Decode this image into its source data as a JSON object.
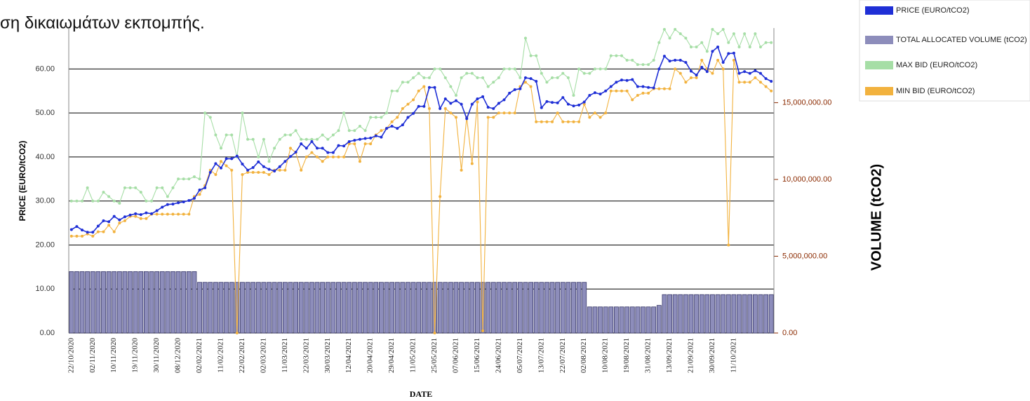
{
  "caption": "ση δικαιωμάτων εκπομπής.",
  "chart_data": {
    "type": "line",
    "xlabel": "DATE",
    "ylabel": "PRICE (EURO/tCO2)",
    "y2label": "VOLUME (tCO2)",
    "categories": [
      "22/10/2020",
      null,
      null,
      null,
      "02/11/2020",
      null,
      null,
      null,
      "10/11/2020",
      null,
      null,
      null,
      "19/11/2020",
      null,
      null,
      null,
      "30/11/2020",
      null,
      null,
      null,
      "08/12/2020",
      null,
      null,
      null,
      "02/02/2021",
      null,
      null,
      null,
      "11/02/2021",
      null,
      null,
      null,
      "22/02/2021",
      null,
      null,
      null,
      "02/03/2021",
      null,
      null,
      null,
      "11/03/2021",
      null,
      null,
      null,
      "22/03/2021",
      null,
      null,
      null,
      "30/03/2021",
      null,
      null,
      null,
      "12/04/2021",
      null,
      null,
      null,
      "20/04/2021",
      null,
      null,
      null,
      "29/04/2021",
      null,
      null,
      null,
      "11/05/2021",
      null,
      null,
      null,
      "25/05/2021",
      null,
      null,
      null,
      "07/06/2021",
      null,
      null,
      null,
      "15/06/2021",
      null,
      null,
      null,
      "24/06/2021",
      null,
      null,
      null,
      "05/07/2021",
      null,
      null,
      null,
      "13/07/2021",
      null,
      null,
      null,
      "22/07/2021",
      null,
      null,
      null,
      "02/08/2021",
      null,
      null,
      null,
      "10/08/2021",
      null,
      null,
      null,
      "19/08/2021",
      null,
      null,
      null,
      "31/08/2021",
      null,
      null,
      null,
      "13/09/2021",
      null,
      null,
      null,
      "21/09/2021",
      null,
      null,
      null,
      "30/09/2021",
      null,
      null,
      null,
      "11/10/2021",
      null,
      null,
      null,
      null,
      null,
      null,
      null
    ],
    "ylim": [
      0,
      69.3
    ],
    "yticks": [
      {
        "value": 0,
        "label": "0.00"
      },
      {
        "value": 10,
        "label": "10.00"
      },
      {
        "value": 20,
        "label": "20.00"
      },
      {
        "value": 30,
        "label": "30.00"
      },
      {
        "value": 40,
        "label": "40.00"
      },
      {
        "value": 50,
        "label": "50.00"
      },
      {
        "value": 60,
        "label": "60.00"
      }
    ],
    "y2lim": [
      0,
      19860000
    ],
    "y2ticks": [
      {
        "value": 0,
        "label": "0.00"
      },
      {
        "value": 5000000,
        "label": "5,000,000.00"
      },
      {
        "value": 10000000,
        "label": "10,000,000.00"
      },
      {
        "value": 15000000,
        "label": "15,000,000.00"
      }
    ],
    "grid": true,
    "legend": "top-right",
    "series": [
      {
        "name": "PRICE (EURO/tCO2)",
        "color": "#1f2fd6",
        "values": [
          23.5,
          24.2,
          23.4,
          22.9,
          22.9,
          24.3,
          25.5,
          25.3,
          26.5,
          25.7,
          26.4,
          26.8,
          27.1,
          26.9,
          27.3,
          27.1,
          27.8,
          28.6,
          29.2,
          29.3,
          29.6,
          29.8,
          30.1,
          30.6,
          32.5,
          33,
          36.5,
          38.5,
          37.5,
          39.6,
          39.6,
          40.2,
          38.4,
          37,
          37.6,
          38.9,
          37.8,
          37.2,
          36.8,
          37.8,
          39,
          40.1,
          41.1,
          43,
          42,
          43.5,
          42,
          42,
          41,
          41,
          42.6,
          42.5,
          43.5,
          43.8,
          44,
          44.2,
          44.3,
          44.8,
          44.5,
          46.5,
          47,
          46.5,
          47.3,
          49,
          49.9,
          51.5,
          51.5,
          55.8,
          55.8,
          51,
          53.2,
          52.2,
          52.8,
          52,
          48.7,
          52,
          53.2,
          53.7,
          51.3,
          51,
          52.2,
          53,
          54.5,
          55.3,
          55.5,
          58,
          57.8,
          57.2,
          51.2,
          52.6,
          52.4,
          52.3,
          53.5,
          52,
          51.6,
          51.8,
          52.5,
          54,
          54.6,
          54.3,
          55,
          56,
          57,
          57.5,
          57.4,
          57.6,
          56,
          56,
          55.8,
          55.7,
          60,
          62.9,
          61.8,
          62,
          62,
          61.5,
          59.5,
          58.6,
          60.4,
          59.4,
          64,
          65,
          61.5,
          63.5,
          63.6,
          59,
          59.4,
          59,
          59.6,
          59,
          57.8,
          57.2
        ]
      },
      {
        "name": "TOTAL ALLOCATED VOLUME (tCO2)",
        "color": "#8d8dbb",
        "axis": "y2",
        "type": "bar",
        "values": [
          4000000,
          4000000,
          4000000,
          4000000,
          4000000,
          4000000,
          4000000,
          4000000,
          4000000,
          4000000,
          4000000,
          4000000,
          4000000,
          4000000,
          4000000,
          4000000,
          4000000,
          4000000,
          4000000,
          4000000,
          4000000,
          4000000,
          4000000,
          4000000,
          3300000,
          3300000,
          3300000,
          3300000,
          3300000,
          3300000,
          3300000,
          3300000,
          3300000,
          3300000,
          3300000,
          3300000,
          3300000,
          3300000,
          3300000,
          3300000,
          3300000,
          3300000,
          3300000,
          3300000,
          3300000,
          3300000,
          3300000,
          3300000,
          3300000,
          3300000,
          3300000,
          3300000,
          3300000,
          3300000,
          3300000,
          3300000,
          3300000,
          3300000,
          3300000,
          3300000,
          3300000,
          3300000,
          3300000,
          3300000,
          3300000,
          3300000,
          3300000,
          3300000,
          3300000,
          3300000,
          3300000,
          3300000,
          3300000,
          3300000,
          3300000,
          3300000,
          3300000,
          3300000,
          3300000,
          3300000,
          3300000,
          3300000,
          3300000,
          3300000,
          3300000,
          3300000,
          3300000,
          3300000,
          3300000,
          3300000,
          3300000,
          3300000,
          3300000,
          3300000,
          3300000,
          3300000,
          3300000,
          1700000,
          1700000,
          1700000,
          1700000,
          1700000,
          1700000,
          1700000,
          1700000,
          1700000,
          1700000,
          1700000,
          1700000,
          1700000,
          1800000,
          2500000,
          2500000,
          2500000,
          2500000,
          2500000,
          2500000,
          2500000,
          2500000,
          2500000,
          2500000,
          2500000,
          2500000,
          2500000,
          2500000,
          2500000,
          2500000,
          2500000,
          2500000,
          2500000,
          2500000,
          2500000
        ]
      },
      {
        "name": "MAX BID (EURO/tCO2)",
        "color": "#a6dea6",
        "values": [
          30,
          30,
          30,
          33,
          30,
          30,
          32,
          31,
          30,
          29.5,
          33,
          33,
          33,
          32,
          30,
          30,
          33,
          33,
          31,
          33,
          35,
          35,
          35,
          35.5,
          35,
          50,
          49,
          45,
          42,
          45,
          45,
          40,
          50,
          44,
          44,
          40,
          44,
          39,
          42,
          44,
          45,
          45,
          46,
          44,
          44,
          44,
          44,
          45,
          44,
          45,
          46,
          50,
          46,
          46,
          47,
          46,
          49,
          49,
          49,
          50,
          55,
          55,
          57,
          57,
          58,
          59,
          58,
          58,
          60,
          60,
          58,
          56,
          54,
          58,
          59,
          59,
          58,
          58,
          56,
          57,
          58,
          60,
          60,
          60,
          58,
          67,
          63,
          63,
          59,
          57,
          58,
          58,
          59,
          58,
          54,
          60,
          59,
          59,
          60,
          60,
          60,
          63,
          63,
          63,
          62,
          62,
          61,
          61,
          61,
          62,
          66,
          69,
          67,
          69,
          68,
          67,
          65,
          65,
          66,
          64,
          69,
          68,
          69,
          66,
          68,
          65,
          68,
          65,
          68,
          65,
          66,
          66
        ]
      },
      {
        "name": "MIN BID (EURO/tCO2)",
        "color": "#f2b23e",
        "values": [
          22,
          22,
          22,
          22.5,
          22,
          23,
          23,
          24.5,
          23,
          25,
          25.5,
          26.5,
          26.5,
          26,
          26,
          27,
          27,
          27,
          27,
          27,
          27,
          27,
          27,
          31,
          31.5,
          33.5,
          37,
          36,
          39,
          38,
          37,
          0,
          36,
          36.5,
          36.5,
          36.5,
          36.5,
          36,
          37,
          37,
          37,
          42,
          41,
          37,
          40,
          41,
          40,
          39,
          40,
          40,
          40,
          40,
          43,
          43,
          39,
          43,
          43,
          45,
          46,
          46.5,
          48,
          49,
          51,
          52,
          53,
          55,
          56,
          51,
          0,
          31,
          51,
          50,
          49,
          37,
          49,
          38.5,
          52.5,
          0.5,
          49,
          49,
          50,
          50,
          50,
          50,
          56,
          57,
          56,
          48,
          48,
          48,
          48,
          50,
          48,
          48,
          48,
          48,
          52,
          49,
          50,
          49,
          50,
          55,
          55,
          55,
          55,
          53,
          54,
          54.5,
          54.5,
          55.5,
          55.5,
          55.5,
          55.5,
          60,
          59,
          57,
          58,
          58,
          62,
          60,
          59,
          62,
          60,
          20,
          62,
          57,
          57,
          57,
          58,
          57,
          56,
          55
        ]
      }
    ]
  }
}
